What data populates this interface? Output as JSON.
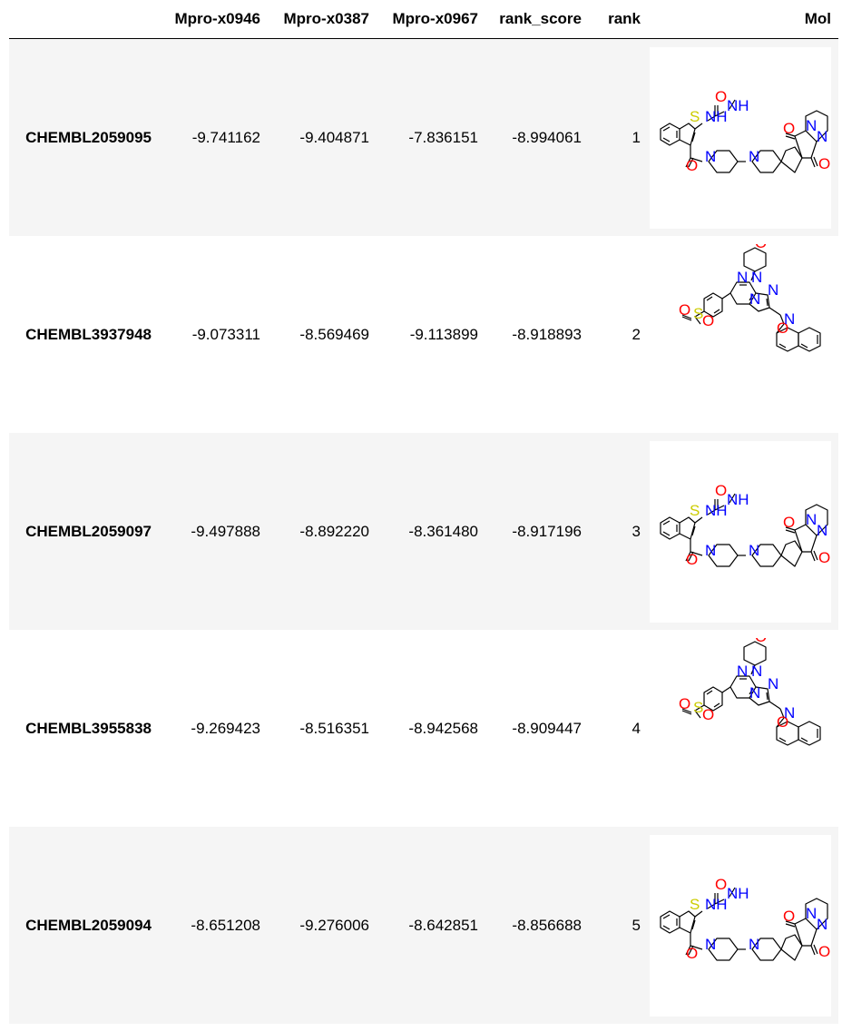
{
  "table": {
    "columns": [
      "",
      "Mpro-x0946",
      "Mpro-x0387",
      "Mpro-x0967",
      "rank_score",
      "rank",
      "Mol"
    ],
    "rows": [
      {
        "id": "CHEMBL2059095",
        "x0946": "-9.741162",
        "x0387": "-9.404871",
        "x0967": "-7.836151",
        "rank_score": "-8.994061",
        "rank": "1"
      },
      {
        "id": "CHEMBL3937948",
        "x0946": "-9.073311",
        "x0387": "-8.569469",
        "x0967": "-9.113899",
        "rank_score": "-8.918893",
        "rank": "2"
      },
      {
        "id": "CHEMBL2059097",
        "x0946": "-9.497888",
        "x0387": "-8.892220",
        "x0967": "-8.361480",
        "rank_score": "-8.917196",
        "rank": "3"
      },
      {
        "id": "CHEMBL3955838",
        "x0946": "-9.269423",
        "x0387": "-8.516351",
        "x0967": "-8.942568",
        "rank_score": "-8.909447",
        "rank": "4"
      },
      {
        "id": "CHEMBL2059094",
        "x0946": "-8.651208",
        "x0387": "-9.276006",
        "x0967": "-8.642851",
        "rank_score": "-8.856688",
        "rank": "5"
      }
    ]
  },
  "colors": {
    "row_shade": "#f5f5f5",
    "nitrogen": "#0000ff",
    "oxygen": "#ff0000",
    "sulfur": "#cccc00"
  },
  "structures": [
    "thienopyridine-urea-spiro",
    "imidazopyrazine-morpholine-sulfonamide",
    "thienopyridine-urea-spiro",
    "imidazopyrazine-morpholine-sulfonamide",
    "thienopyridine-urea-spiro"
  ]
}
